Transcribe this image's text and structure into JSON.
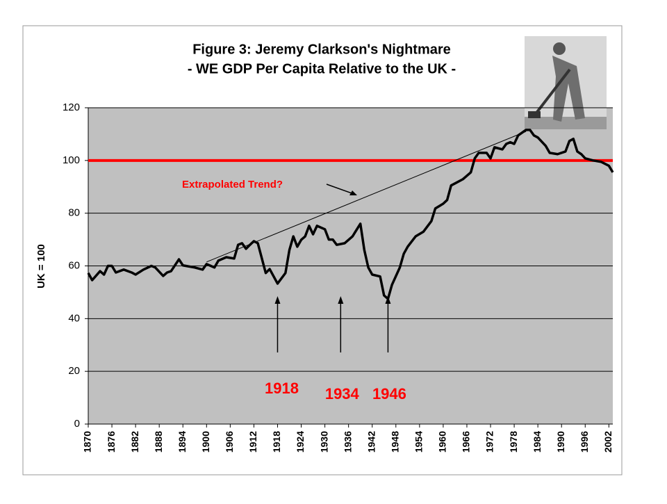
{
  "chart_data": {
    "type": "line",
    "title": "Figure 3: Jeremy Clarkson's Nightmare",
    "subtitle": "- WE GDP Per Capita Relative to the UK -",
    "y_label": "UK = 100",
    "xlim": [
      1870,
      2003
    ],
    "ylim": [
      0,
      120
    ],
    "xticks": [
      1870,
      1876,
      1882,
      1888,
      1894,
      1900,
      1906,
      1912,
      1918,
      1924,
      1930,
      1936,
      1942,
      1948,
      1954,
      1960,
      1966,
      1972,
      1978,
      1984,
      1990,
      1996,
      2002
    ],
    "yticks": [
      0,
      20,
      40,
      60,
      80,
      100,
      120
    ],
    "grid": true,
    "series": [
      {
        "color": "#000000",
        "x": [
          1870,
          1871,
          1873,
          1874,
          1875,
          1876,
          1877,
          1879,
          1881,
          1882,
          1884,
          1886,
          1887,
          1889,
          1890,
          1891,
          1893,
          1894,
          1897,
          1899,
          1900,
          1902,
          1903,
          1905,
          1907,
          1908,
          1909,
          1910,
          1911,
          1912,
          1913,
          1915,
          1916,
          1918,
          1920,
          1921,
          1922,
          1923,
          1924,
          1925,
          1926,
          1927,
          1928,
          1930,
          1931,
          1932,
          1933,
          1935,
          1937,
          1939,
          1940,
          1941,
          1942,
          1944,
          1945,
          1946,
          1947,
          1949,
          1950,
          1951,
          1953,
          1955,
          1957,
          1958,
          1960,
          1961,
          1962,
          1963,
          1965,
          1967,
          1968,
          1969,
          1971,
          1972,
          1973,
          1975,
          1976,
          1977,
          1978,
          1979,
          1981,
          1982,
          1983,
          1984,
          1986,
          1987,
          1989,
          1991,
          1992,
          1993,
          1994,
          1995,
          1996,
          1998,
          2000,
          2002,
          2003
        ],
        "values": [
          57.3,
          54.6,
          58.0,
          56.7,
          60.0,
          60.0,
          57.5,
          58.6,
          57.5,
          56.7,
          58.6,
          60.0,
          59.4,
          56.2,
          57.5,
          58.0,
          62.5,
          60.2,
          59.4,
          58.6,
          60.7,
          59.4,
          62.0,
          63.3,
          62.8,
          68.0,
          68.6,
          66.5,
          68.0,
          69.4,
          68.6,
          57.3,
          58.8,
          53.3,
          57.3,
          66.0,
          71.2,
          67.3,
          69.9,
          71.2,
          75.2,
          72.0,
          75.2,
          73.9,
          70.0,
          70.0,
          68.0,
          68.6,
          71.2,
          76.0,
          66.0,
          59.4,
          56.7,
          56.0,
          48.8,
          47.5,
          52.8,
          59.4,
          64.6,
          67.3,
          71.2,
          73.0,
          77.0,
          81.8,
          83.6,
          85.0,
          90.5,
          91.3,
          92.9,
          95.5,
          100.8,
          102.9,
          102.9,
          100.8,
          105.0,
          104.2,
          106.3,
          106.9,
          106.3,
          109.5,
          111.6,
          111.6,
          109.5,
          108.7,
          105.5,
          102.9,
          102.4,
          103.4,
          107.4,
          108.2,
          103.4,
          102.4,
          100.8,
          100.0,
          99.5,
          98.0,
          95.5
        ]
      }
    ],
    "reference_line": {
      "value": 100,
      "color": "#ff0000"
    },
    "trend_line": {
      "label": "Extrapolated Trend?",
      "x": [
        1900,
        1981
      ],
      "values": [
        61.5,
        111
      ]
    },
    "annotations": [
      {
        "text": "1918",
        "x": 1918
      },
      {
        "text": "1934",
        "x": 1934
      },
      {
        "text": "1946",
        "x": 1946
      }
    ]
  }
}
